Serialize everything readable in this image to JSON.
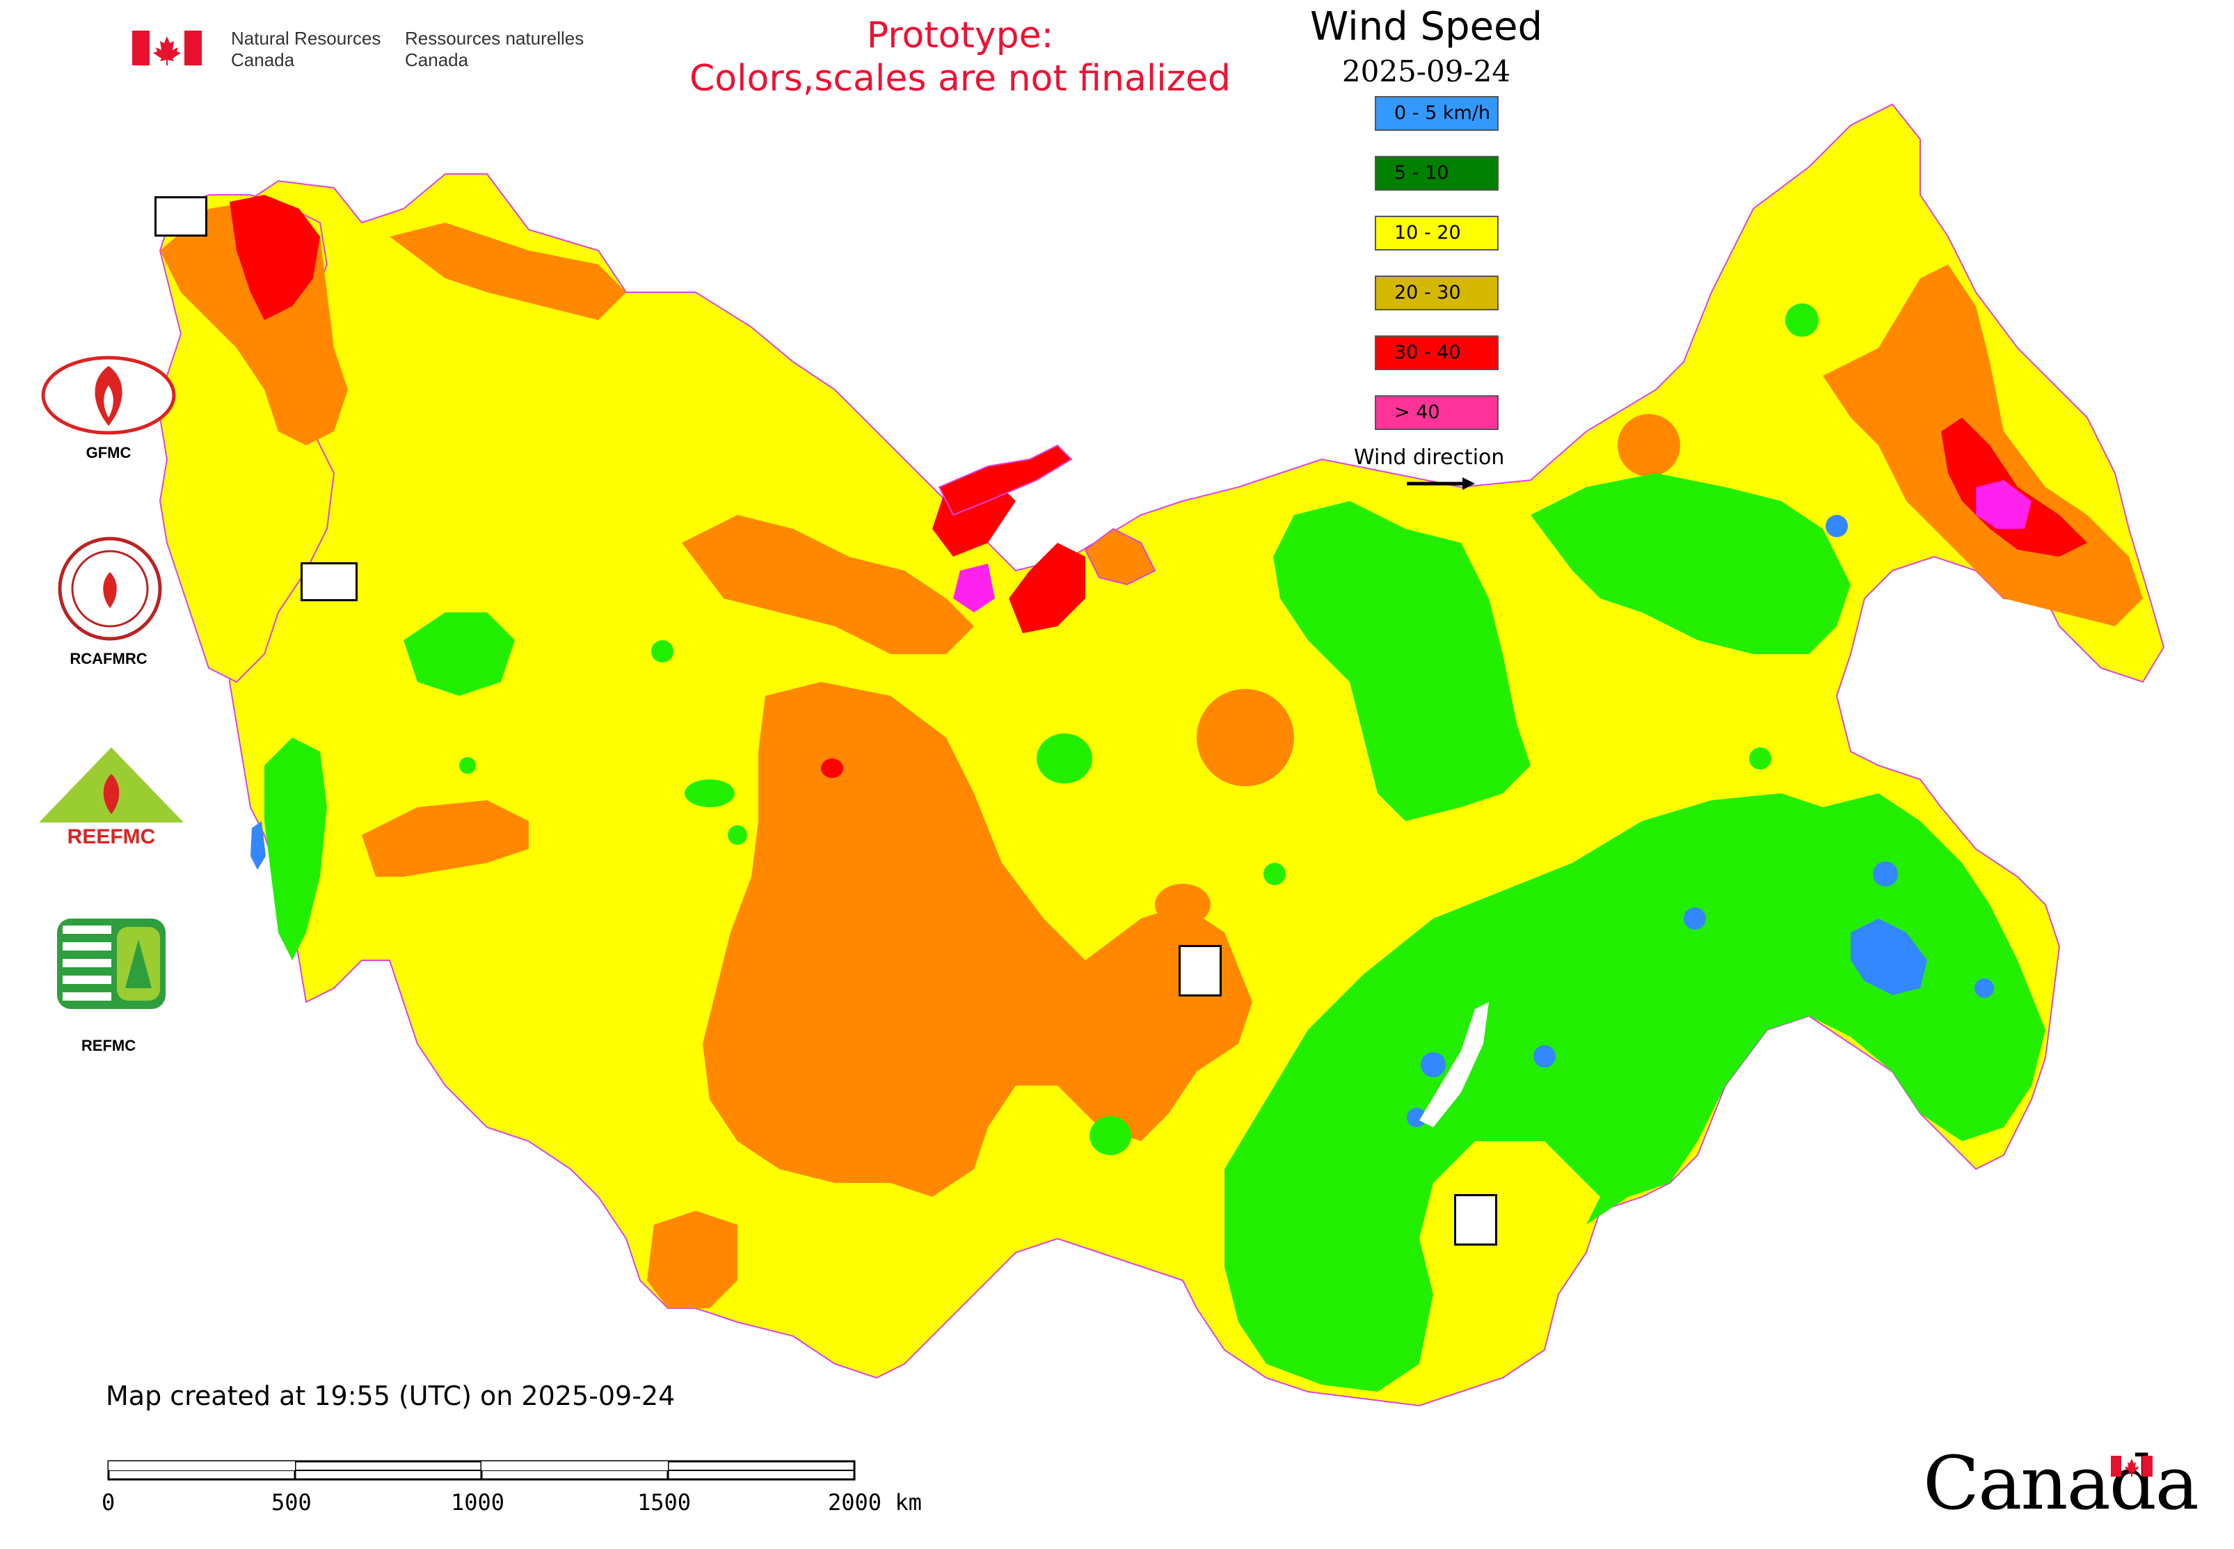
{
  "header": {
    "department_en_line1": "Natural Resources",
    "department_en_line2": "Canada",
    "department_fr_line1": "Ressources naturelles",
    "department_fr_line2": "Canada",
    "prototype_line1": "Prototype:",
    "prototype_line2": "Colors,scales are not finalized"
  },
  "legend": {
    "title": "Wind Speed",
    "date": "2025-09-24",
    "classes": [
      {
        "label": "0 - 5 km/h",
        "color": "#3399ff"
      },
      {
        "label": "5 - 10",
        "color": "#008000"
      },
      {
        "label": "10 - 20",
        "color": "#ffff00"
      },
      {
        "label": "20 - 30",
        "color": "#d4b800"
      },
      {
        "label": "30 - 40",
        "color": "#ff0000"
      },
      {
        "label": "> 40",
        "color": "#ff3399"
      }
    ],
    "wind_direction_label": "Wind direction",
    "arrow_icon": "arrow-right-icon"
  },
  "map_colors": {
    "speed_0_5": "#3388ff",
    "speed_5_10": "#22ee00",
    "speed_10_20": "#ffff00",
    "speed_20_30": "#ff8800",
    "speed_30_40": "#ff0000",
    "speed_over_40": "#ff22ee",
    "boundary": "#dd44dd",
    "water": "#ffffff"
  },
  "side_logos": [
    {
      "label": "GFMC",
      "icon": "gfmc-logo-icon"
    },
    {
      "label": "RCAFMRC",
      "icon": "rcafmrc-logo-icon"
    },
    {
      "label": "",
      "icon": "reefmc-logo-icon",
      "logo_text": "REEFMC"
    },
    {
      "label": "REFMC",
      "icon": "refmc-logo-icon"
    }
  ],
  "footer": {
    "created_text": "Map created at 19:55 (UTC) on 2025-09-24",
    "scale_labels": [
      "0",
      "500",
      "1000",
      "1500",
      "2000 km"
    ],
    "canada_wordmark": "Canada"
  }
}
